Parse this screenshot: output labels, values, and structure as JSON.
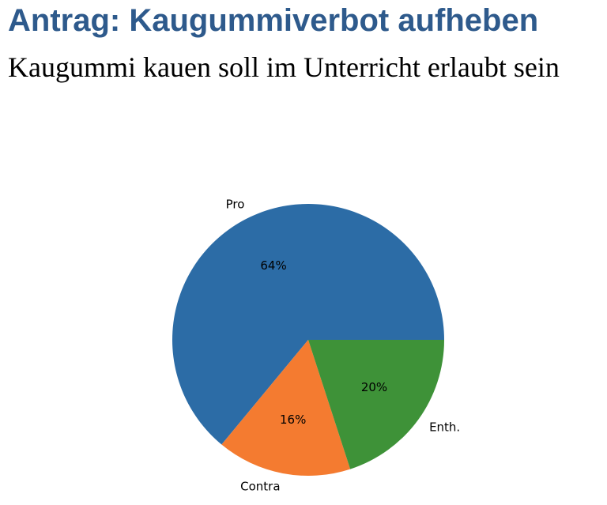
{
  "slide": {
    "title": "Antrag: Kaugummiverbot aufheben",
    "subtitle": "Kaugummi kauen soll im Unterricht erlaubt sein",
    "title_color": "#2e5a8c"
  },
  "chart_data": {
    "type": "pie",
    "title": "",
    "start_angle_deg": 0,
    "direction": "counterclockwise",
    "slices": [
      {
        "label": "Pro",
        "value": 64,
        "pct_label": "64%",
        "color": "#2c6ca6"
      },
      {
        "label": "Contra",
        "value": 16,
        "pct_label": "16%",
        "color": "#f47b30"
      },
      {
        "label": "Enth.",
        "value": 20,
        "pct_label": "20%",
        "color": "#3e9238"
      }
    ]
  }
}
